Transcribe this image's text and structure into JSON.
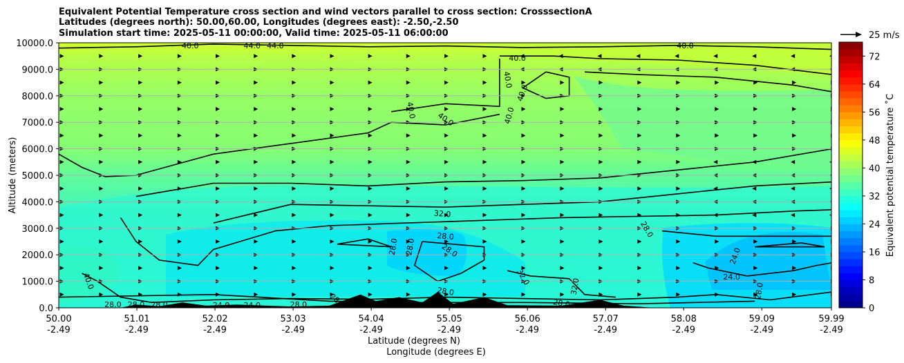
{
  "chart_data": {
    "type": "contour",
    "title_lines": [
      "Equivalent Potential Temperature cross section and wind vectors parallel to cross section: CrosssectionA",
      "Latitudes (degrees north): 50.00,60.00, Longitudes (degrees east): -2.50,-2.50",
      "Simulation start time: 2025-05-11 00:00:00, Valid time: 2025-05-11 06:00:00"
    ],
    "xlabel": "Latitude (degrees N)",
    "xlabel2": "Longitude (degrees E)",
    "ylabel": "Altitude (meters)",
    "xlim": [
      50.0,
      59.99
    ],
    "ylim": [
      0,
      10000
    ],
    "x_ticks": [
      {
        "lat": "50.00",
        "lon": "-2.49",
        "value": 50.0
      },
      {
        "lat": "51.01",
        "lon": "-2.49",
        "value": 51.01
      },
      {
        "lat": "52.02",
        "lon": "-2.49",
        "value": 52.02
      },
      {
        "lat": "53.03",
        "lon": "-2.49",
        "value": 53.03
      },
      {
        "lat": "54.04",
        "lon": "-2.49",
        "value": 54.04
      },
      {
        "lat": "55.05",
        "lon": "-2.49",
        "value": 55.05
      },
      {
        "lat": "56.06",
        "lon": "-2.49",
        "value": 56.06
      },
      {
        "lat": "57.07",
        "lon": "-2.49",
        "value": 57.07
      },
      {
        "lat": "58.08",
        "lon": "-2.49",
        "value": 58.08
      },
      {
        "lat": "59.09",
        "lon": "-2.49",
        "value": 59.09
      },
      {
        "lat": "59.99",
        "lon": "-2.49",
        "value": 59.99
      }
    ],
    "y_ticks": [
      {
        "label": "0.0",
        "value": 0
      },
      {
        "label": "1000.0",
        "value": 1000
      },
      {
        "label": "2000.0",
        "value": 2000
      },
      {
        "label": "3000.0",
        "value": 3000
      },
      {
        "label": "4000.0",
        "value": 4000
      },
      {
        "label": "5000.0",
        "value": 5000
      },
      {
        "label": "6000.0",
        "value": 6000
      },
      {
        "label": "7000.0",
        "value": 7000
      },
      {
        "label": "8000.0",
        "value": 8000
      },
      {
        "label": "9000.0",
        "value": 9000
      },
      {
        "label": "10000.0",
        "value": 10000
      }
    ],
    "grid": "horizontal",
    "colorbar": {
      "label": "Equivalent potential temperature ˚C",
      "min": 0,
      "max": 76,
      "ticks": [
        "0",
        "8",
        "16",
        "24",
        "32",
        "40",
        "48",
        "56",
        "64",
        "72"
      ],
      "tick_values": [
        0,
        8,
        16,
        24,
        32,
        40,
        48,
        56,
        64,
        72
      ],
      "colormap": "jet"
    },
    "quiver_key": {
      "label": "25 m/s"
    },
    "contour_levels": [
      24,
      28,
      32,
      40,
      44
    ],
    "contour_labels": [
      {
        "text": "40.0",
        "x": 55.93,
        "y": 9400,
        "angle": 0
      },
      {
        "text": "40.0",
        "x": 55.8,
        "y": 8600,
        "angle": 80
      },
      {
        "text": "40.0",
        "x": 56.0,
        "y": 8100,
        "angle": -70
      },
      {
        "text": "40.0",
        "x": 54.55,
        "y": 7450,
        "angle": 80
      },
      {
        "text": "40.0",
        "x": 55.0,
        "y": 7100,
        "angle": 35
      },
      {
        "text": "40.0",
        "x": 55.83,
        "y": 7250,
        "angle": -75
      },
      {
        "text": "44.0",
        "x": 52.5,
        "y": 9870,
        "angle": 0
      },
      {
        "text": "44.0",
        "x": 52.8,
        "y": 9870,
        "angle": 0
      },
      {
        "text": "40.0",
        "x": 51.7,
        "y": 9870,
        "angle": 0
      },
      {
        "text": "40.0",
        "x": 58.1,
        "y": 9870,
        "angle": 0
      },
      {
        "text": "32.0",
        "x": 54.96,
        "y": 3530,
        "angle": 5
      },
      {
        "text": "28.0",
        "x": 55.0,
        "y": 2680,
        "angle": 5
      },
      {
        "text": "28.0",
        "x": 55.05,
        "y": 2150,
        "angle": 35
      },
      {
        "text": "28.0",
        "x": 54.33,
        "y": 2300,
        "angle": -80
      },
      {
        "text": "28.0",
        "x": 54.55,
        "y": 2300,
        "angle": -80
      },
      {
        "text": "28.0",
        "x": 57.6,
        "y": 2950,
        "angle": 60
      },
      {
        "text": "24.0",
        "x": 58.75,
        "y": 1950,
        "angle": -70
      },
      {
        "text": "24.0",
        "x": 58.7,
        "y": 1150,
        "angle": 0
      },
      {
        "text": "28.0",
        "x": 59.06,
        "y": 630,
        "angle": -80
      },
      {
        "text": "32.0",
        "x": 56.0,
        "y": 1150,
        "angle": 60
      },
      {
        "text": "32.0",
        "x": 56.68,
        "y": 800,
        "angle": -80
      },
      {
        "text": "40.0",
        "x": 50.38,
        "y": 1000,
        "angle": 70
      },
      {
        "text": "28.0",
        "x": 55.0,
        "y": 600,
        "angle": 10
      },
      {
        "text": "28.0",
        "x": 56.5,
        "y": 150,
        "angle": 10
      },
      {
        "text": "28.0",
        "x": 56.98,
        "y": 150,
        "angle": 10
      },
      {
        "text": "28.0",
        "x": 50.7,
        "y": 100,
        "angle": 0
      },
      {
        "text": "28.0",
        "x": 51.0,
        "y": 100,
        "angle": 0
      },
      {
        "text": "28.0",
        "x": 51.3,
        "y": 100,
        "angle": 0
      },
      {
        "text": "28.0",
        "x": 53.1,
        "y": 100,
        "angle": 0
      },
      {
        "text": "24.0",
        "x": 52.5,
        "y": 80,
        "angle": 0
      },
      {
        "text": "24.0",
        "x": 52.1,
        "y": 80,
        "angle": 0
      },
      {
        "text": "28.0",
        "x": 53.6,
        "y": 250,
        "angle": 40
      }
    ],
    "field_note_colors": {
      "low_level": "#16f5e0",
      "core": "#00d5ff",
      "mid": "#3bf6c7",
      "upper": "#9cff5c",
      "top": "#d2ff2c",
      "terrain": "#000000",
      "contour": "#000000",
      "arrow": "#000000",
      "grid": "#b0b0b0"
    }
  }
}
